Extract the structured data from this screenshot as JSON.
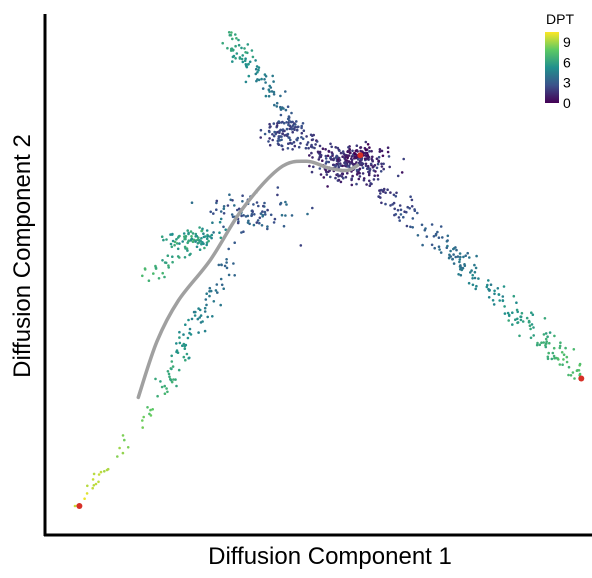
{
  "chart_data": {
    "type": "scatter",
    "title": "",
    "xlabel": "Diffusion Component 1",
    "ylabel": "Diffusion Component 2",
    "xlim": [
      0,
      1
    ],
    "ylim": [
      0,
      1
    ],
    "grid": false,
    "axis_ticks": false,
    "color_variable": "DPT",
    "colorbar": {
      "title": "DPT",
      "ticks": [
        0,
        3,
        6,
        9
      ],
      "range": [
        0,
        10.5
      ],
      "placement": "top-right",
      "colors": [
        "#440154",
        "#3b528b",
        "#21908d",
        "#5dc963",
        "#fde725"
      ]
    },
    "point_clusters": [
      {
        "name": "hub",
        "center": [
          0.56,
          0.72
        ],
        "spread": [
          0.07,
          0.035
        ],
        "count": 260,
        "dpt": [
          0.5,
          2.5
        ]
      },
      {
        "name": "root-tip",
        "center": [
          0.58,
          0.74
        ],
        "spread": [
          0.03,
          0.015
        ],
        "count": 40,
        "dpt": [
          0,
          1
        ]
      },
      {
        "name": "upper-branch-mid",
        "center": [
          0.44,
          0.78
        ],
        "spread": [
          0.04,
          0.03
        ],
        "count": 90,
        "dpt": [
          1.5,
          3
        ]
      },
      {
        "name": "middle-band",
        "center": [
          0.38,
          0.62
        ],
        "spread": [
          0.08,
          0.04
        ],
        "count": 90,
        "dpt": [
          2,
          4
        ]
      },
      {
        "name": "left-arm-cluster",
        "center": [
          0.26,
          0.57
        ],
        "spread": [
          0.05,
          0.02
        ],
        "count": 70,
        "dpt": [
          5,
          7
        ]
      }
    ],
    "point_branches": [
      {
        "name": "upper-branch",
        "from": [
          0.33,
          0.97
        ],
        "to": [
          0.5,
          0.74
        ],
        "count": 120,
        "jitter": 0.018,
        "dpt": [
          6.5,
          1.5
        ]
      },
      {
        "name": "right-branch",
        "from": [
          0.6,
          0.68
        ],
        "to": [
          0.99,
          0.31
        ],
        "count": 230,
        "jitter": 0.025,
        "dpt": [
          1.5,
          7.5
        ]
      },
      {
        "name": "left-lower-branch",
        "from": [
          0.34,
          0.54
        ],
        "to": [
          0.2,
          0.25
        ],
        "count": 90,
        "jitter": 0.02,
        "dpt": [
          3,
          7
        ]
      },
      {
        "name": "left-tail",
        "from": [
          0.2,
          0.25
        ],
        "to": [
          0.05,
          0.05
        ],
        "count": 30,
        "jitter": 0.012,
        "dpt": [
          7.5,
          10
        ]
      },
      {
        "name": "left-arm",
        "from": [
          0.33,
          0.6
        ],
        "to": [
          0.18,
          0.5
        ],
        "count": 40,
        "jitter": 0.02,
        "dpt": [
          4.5,
          7
        ]
      }
    ],
    "tips": [
      {
        "x": 0.58,
        "y": 0.735
      },
      {
        "x": 0.993,
        "y": 0.297
      },
      {
        "x": 0.055,
        "y": 0.047
      }
    ],
    "tip_color": "#d73027",
    "trajectory": {
      "color": "#a0a0a0",
      "points": [
        [
          0.165,
          0.26
        ],
        [
          0.2,
          0.37
        ],
        [
          0.24,
          0.45
        ],
        [
          0.3,
          0.53
        ],
        [
          0.36,
          0.63
        ],
        [
          0.43,
          0.71
        ],
        [
          0.48,
          0.723
        ],
        [
          0.52,
          0.71
        ],
        [
          0.555,
          0.705
        ],
        [
          0.575,
          0.715
        ]
      ]
    }
  }
}
